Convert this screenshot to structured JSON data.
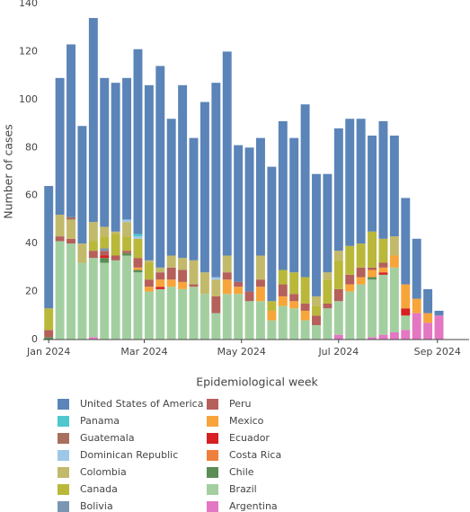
{
  "chart_data": {
    "type": "stacked-bar",
    "y_label": "Number of cases",
    "x_label": "Epidemiological week",
    "x": [
      1,
      2,
      3,
      4,
      5,
      6,
      7,
      8,
      9,
      10,
      11,
      12,
      13,
      14,
      15,
      16,
      17,
      18,
      19,
      20,
      21,
      22,
      23,
      24,
      25,
      26,
      27,
      28,
      29,
      30,
      31,
      32,
      33,
      34,
      35,
      36
    ],
    "xlim": [
      0.5,
      38.7
    ],
    "xticks": [
      {
        "value": 1,
        "label": "Jan 2024"
      },
      {
        "value": 9.57,
        "label": "Mar 2024"
      },
      {
        "value": 18.29,
        "label": "May 2024"
      },
      {
        "value": 27,
        "label": "Jul 2024"
      },
      {
        "value": 35.86,
        "label": "Sep 2024"
      }
    ],
    "ylim": [
      0,
      140
    ],
    "yticks": [
      0,
      20,
      40,
      60,
      80,
      100,
      120,
      140
    ],
    "grid": false,
    "series": [
      {
        "name": "Argentina",
        "color": "#e377c2",
        "values": [
          0,
          0,
          0,
          0,
          1,
          0,
          0,
          0,
          0,
          0,
          0,
          0,
          0,
          0,
          0,
          0,
          0,
          0,
          0,
          0,
          0,
          0,
          0,
          0,
          0,
          0,
          2,
          0,
          0,
          1,
          2,
          3,
          4,
          11,
          7,
          10
        ]
      },
      {
        "name": "Brazil",
        "color": "#a3cfa0",
        "values": [
          0,
          41,
          40,
          32,
          33,
          32,
          33,
          35,
          28,
          20,
          21,
          22,
          21,
          22,
          19,
          11,
          19,
          19,
          16,
          16,
          8,
          14,
          13,
          8,
          6,
          13,
          14,
          20,
          23,
          24,
          25,
          27,
          6,
          0,
          0,
          0
        ]
      },
      {
        "name": "Chile",
        "color": "#5a8d55",
        "values": [
          1,
          0,
          0,
          0,
          0,
          2,
          0,
          1,
          1,
          0,
          0,
          0,
          0,
          0,
          0,
          0,
          0,
          0,
          0,
          0,
          0,
          0,
          0,
          0,
          0,
          0,
          0,
          0,
          0,
          1,
          0,
          0,
          0,
          0,
          0,
          0
        ]
      },
      {
        "name": "Costa Rica",
        "color": "#ef7f3c",
        "values": [
          0,
          0,
          0,
          0,
          0,
          0,
          0,
          0,
          0,
          0,
          0,
          0,
          0,
          0,
          0,
          0,
          0,
          0,
          0,
          0,
          0,
          0,
          0,
          0,
          0,
          0,
          0,
          0,
          0,
          0,
          0,
          0,
          0,
          0,
          0,
          0
        ]
      },
      {
        "name": "Ecuador",
        "color": "#d62022",
        "values": [
          0,
          0,
          0,
          0,
          0,
          1,
          0,
          0,
          0,
          0,
          1,
          0,
          0,
          0,
          0,
          0,
          0,
          0,
          0,
          0,
          0,
          0,
          0,
          0,
          0,
          0,
          0,
          0,
          0,
          0,
          1,
          0,
          3,
          0,
          0,
          0
        ]
      },
      {
        "name": "Mexico",
        "color": "#f7a53a",
        "values": [
          0,
          0,
          0,
          0,
          0,
          0,
          0,
          0,
          1,
          2,
          3,
          3,
          3,
          0,
          0,
          0,
          6,
          3,
          0,
          6,
          4,
          4,
          3,
          4,
          0,
          0,
          0,
          3,
          3,
          3,
          2,
          5,
          10,
          6,
          4,
          0
        ]
      },
      {
        "name": "Peru",
        "color": "#b5605a",
        "values": [
          3,
          2,
          2,
          0,
          3,
          2,
          2,
          1,
          4,
          3,
          3,
          5,
          5,
          1,
          0,
          7,
          3,
          2,
          4,
          3,
          0,
          5,
          3,
          3,
          4,
          2,
          5,
          4,
          4,
          1,
          2,
          0,
          0,
          0,
          0,
          0
        ]
      },
      {
        "name": "Bolivia",
        "color": "#7b96b3",
        "values": [
          0,
          0,
          0,
          0,
          0,
          1,
          0,
          0,
          0,
          0,
          0,
          0,
          0,
          0,
          0,
          0,
          0,
          0,
          0,
          0,
          0,
          0,
          0,
          0,
          0,
          0,
          0,
          0,
          0,
          0,
          0,
          0,
          0,
          0,
          0,
          0
        ]
      },
      {
        "name": "Canada",
        "color": "#b9b83a",
        "values": [
          9,
          0,
          0,
          0,
          4,
          5,
          9,
          6,
          8,
          7,
          0,
          0,
          0,
          0,
          0,
          0,
          0,
          0,
          0,
          0,
          4,
          6,
          9,
          11,
          4,
          10,
          12,
          12,
          10,
          15,
          10,
          0,
          0,
          0,
          0,
          0
        ]
      },
      {
        "name": "Colombia",
        "color": "#c2b96b",
        "values": [
          0,
          9,
          8,
          8,
          8,
          4,
          1,
          6,
          0,
          1,
          2,
          5,
          5,
          10,
          9,
          7,
          7,
          0,
          0,
          10,
          0,
          0,
          0,
          0,
          4,
          3,
          4,
          0,
          0,
          0,
          0,
          8,
          0,
          0,
          0,
          0
        ]
      },
      {
        "name": "Dominican Republic",
        "color": "#9ec7e8",
        "values": [
          0,
          0,
          0,
          0,
          0,
          0,
          0,
          1,
          1,
          0,
          0,
          0,
          0,
          0,
          0,
          1,
          0,
          0,
          0,
          0,
          0,
          0,
          0,
          0,
          0,
          0,
          0,
          0,
          0,
          0,
          0,
          0,
          0,
          0,
          0,
          0
        ]
      },
      {
        "name": "Guatemala",
        "color": "#a86f5e",
        "values": [
          0,
          0,
          1,
          0,
          0,
          0,
          0,
          0,
          0,
          0,
          0,
          0,
          0,
          0,
          0,
          0,
          0,
          0,
          0,
          0,
          0,
          0,
          0,
          0,
          0,
          0,
          0,
          0,
          0,
          0,
          0,
          0,
          0,
          0,
          0,
          0
        ]
      },
      {
        "name": "Panama",
        "color": "#4ec7cf",
        "values": [
          0,
          0,
          0,
          0,
          0,
          0,
          0,
          0,
          1,
          0,
          0,
          0,
          0,
          0,
          0,
          0,
          0,
          0,
          0,
          0,
          0,
          0,
          0,
          0,
          0,
          0,
          0,
          0,
          0,
          0,
          0,
          0,
          0,
          0,
          0,
          0
        ]
      },
      {
        "name": "United States of America",
        "color": "#5b84b8",
        "values": [
          51,
          57,
          72,
          49,
          85,
          62,
          62,
          59,
          77,
          73,
          84,
          57,
          72,
          51,
          71,
          81,
          85,
          57,
          60,
          49,
          56,
          62,
          56,
          72,
          51,
          41,
          51,
          53,
          52,
          40,
          49,
          42,
          36,
          25,
          10,
          2
        ]
      }
    ]
  }
}
